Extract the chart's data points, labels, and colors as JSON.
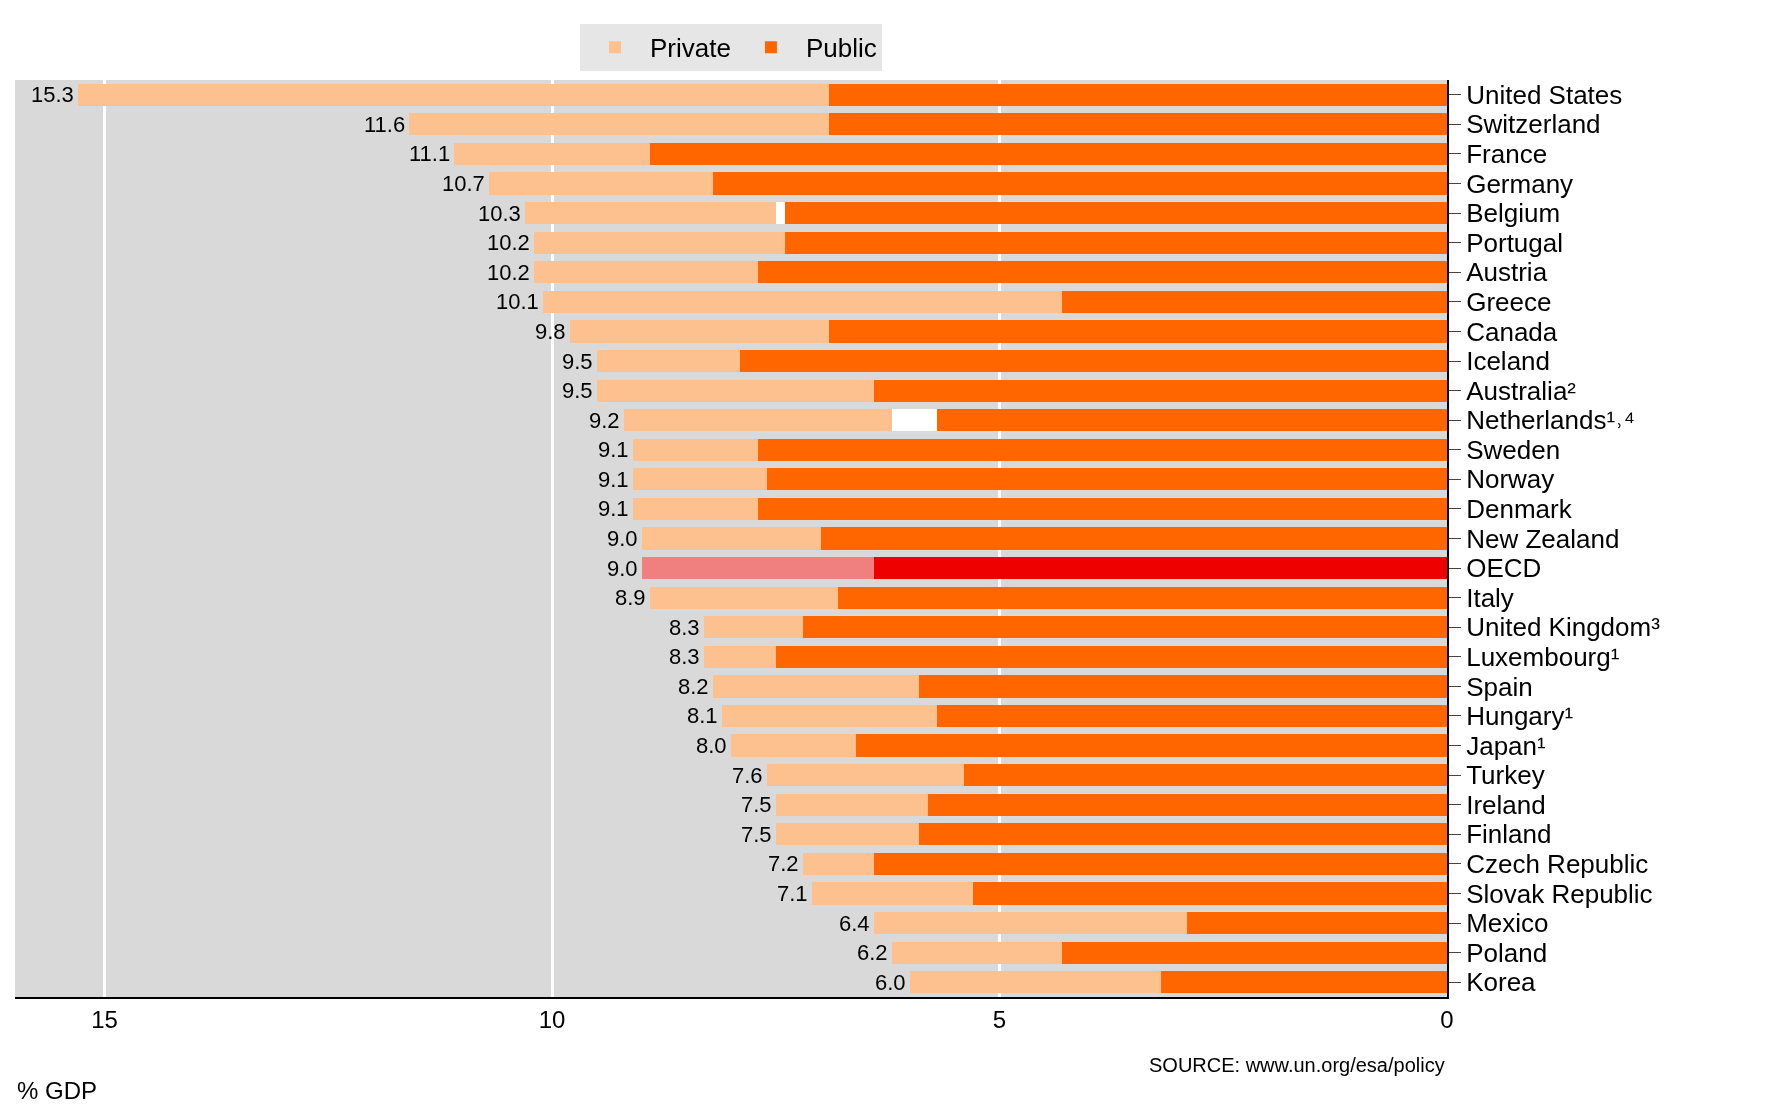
{
  "chart_data": {
    "type": "bar",
    "orientation": "horizontal",
    "stacked": true,
    "categories": [
      "United States",
      "Switzerland",
      "France",
      "Germany",
      "Belgium",
      "Portugal",
      "Austria",
      "Greece",
      "Canada",
      "Iceland",
      "Australia²",
      "Netherlands¹˒⁴",
      "Sweden",
      "Norway",
      "Denmark",
      "New Zealand",
      "OECD",
      "Italy",
      "United Kingdom³",
      "Luxembourg¹",
      "Spain",
      "Hungary¹",
      "Japan¹",
      "Turkey",
      "Ireland",
      "Finland",
      "Czech Republic",
      "Slovak Republic",
      "Mexico",
      "Poland",
      "Korea"
    ],
    "series": [
      {
        "name": "Public",
        "color": "#ff6600",
        "colors": [
          "#ff6600",
          "#ff6600",
          "#ff6600",
          "#ff6600",
          "#ff6600",
          "#ff6600",
          "#ff6600",
          "#ff6600",
          "#ff6600",
          "#ff6600",
          "#ff6600",
          "#ff6600",
          "#ff6600",
          "#ff6600",
          "#ff6600",
          "#ff6600",
          "#ee0000",
          "#ff6600",
          "#ff6600",
          "#ff6600",
          "#ff6600",
          "#ff6600",
          "#ff6600",
          "#ff6600",
          "#ff6600",
          "#ff6600",
          "#ff6600",
          "#ff6600",
          "#ff6600",
          "#ff6600",
          "#ff6600"
        ],
        "values": [
          6.9,
          6.9,
          8.9,
          8.2,
          7.4,
          7.4,
          7.7,
          4.3,
          6.9,
          7.9,
          6.4,
          5.7,
          7.7,
          7.6,
          7.7,
          7.0,
          6.4,
          6.8,
          7.2,
          7.5,
          5.9,
          5.7,
          6.6,
          5.4,
          5.8,
          5.9,
          6.4,
          5.3,
          2.9,
          4.3,
          3.2
        ]
      },
      {
        "color": "#ffffff",
        "values": [
          null,
          null,
          null,
          null,
          0.1,
          null,
          null,
          null,
          null,
          null,
          null,
          0.5,
          null,
          null,
          null,
          null,
          null,
          null,
          null,
          null,
          null,
          null,
          null,
          null,
          null,
          null,
          null,
          null,
          null,
          null,
          null
        ]
      },
      {
        "name": "Private",
        "color": "#fdc08f",
        "colors": [
          "#fdc08f",
          "#fdc08f",
          "#fdc08f",
          "#fdc08f",
          "#fdc08f",
          "#fdc08f",
          "#fdc08f",
          "#fdc08f",
          "#fdc08f",
          "#fdc08f",
          "#fdc08f",
          "#fdc08f",
          "#fdc08f",
          "#fdc08f",
          "#fdc08f",
          "#fdc08f",
          "#f08080",
          "#fdc08f",
          "#fdc08f",
          "#fdc08f",
          "#fdc08f",
          "#fdc08f",
          "#fdc08f",
          "#fdc08f",
          "#fdc08f",
          "#fdc08f",
          "#fdc08f",
          "#fdc08f",
          "#fdc08f",
          "#fdc08f",
          "#fdc08f"
        ],
        "values": [
          8.4,
          4.7,
          2.2,
          2.5,
          2.8,
          2.8,
          2.5,
          5.8,
          2.9,
          1.6,
          3.1,
          3.0,
          1.4,
          1.5,
          1.4,
          2.0,
          2.6,
          2.1,
          1.1,
          0.8,
          2.3,
          2.4,
          1.4,
          2.2,
          1.7,
          1.6,
          0.8,
          1.8,
          3.5,
          1.9,
          2.8
        ]
      }
    ],
    "totals": [
      "15.3",
      "11.6",
      "11.1",
      "10.7",
      "10.3",
      "10.2",
      "10.2",
      "10.1",
      "9.8",
      "9.5",
      "9.5",
      "9.2",
      "9.1",
      "9.1",
      "9.1",
      "9.0",
      "9.0",
      "8.9",
      "8.3",
      "8.3",
      "8.2",
      "8.1",
      "8.0",
      "7.6",
      "7.5",
      "7.5",
      "7.2",
      "7.1",
      "6.4",
      "6.2",
      "6.0"
    ],
    "xlim": [
      16,
      0
    ],
    "xticks": [
      15,
      10,
      5,
      0
    ],
    "xlabel": "% GDP",
    "grid": "x",
    "legend": "top",
    "annotations": [
      "SOURCE: www.un.org/esa/policy"
    ]
  }
}
